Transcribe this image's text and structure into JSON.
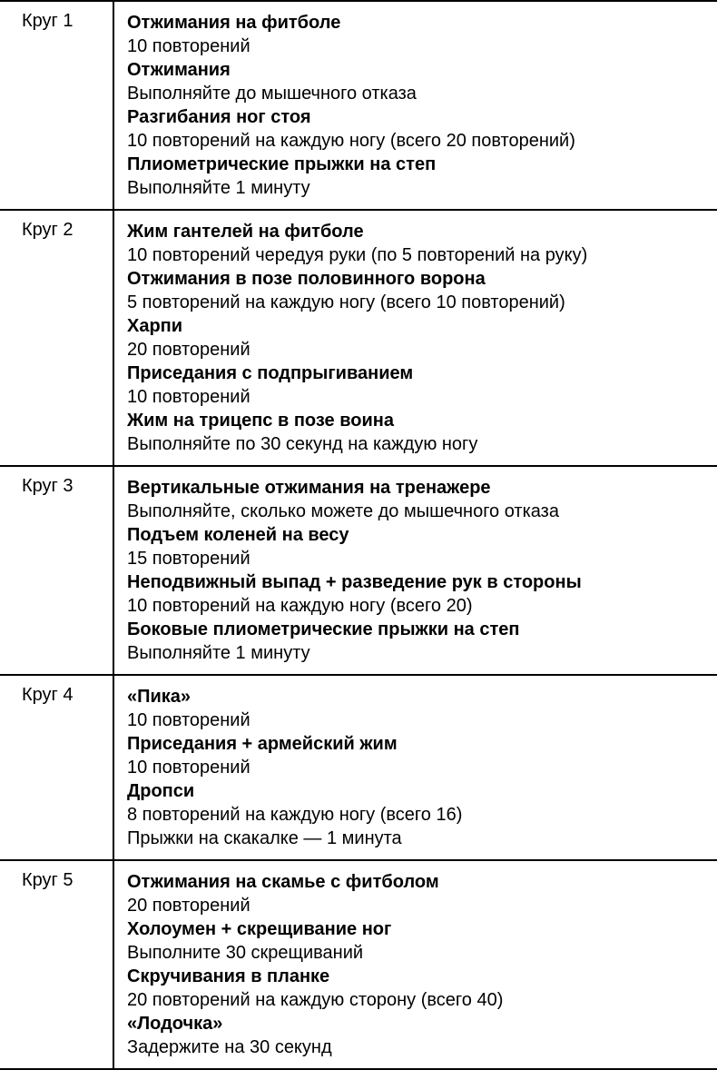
{
  "rounds": [
    {
      "label": "Круг 1",
      "exercises": [
        {
          "name": "Отжимания на фитболе",
          "desc": "10 повторений"
        },
        {
          "name": "Отжимания",
          "desc": "Выполняйте до мышечного отказа"
        },
        {
          "name": "Разгибания ног стоя",
          "desc": "10 повторений на каждую ногу (всего 20 повторений)"
        },
        {
          "name": "Плиометрические прыжки на степ",
          "desc": "Выполняйте 1 минуту"
        }
      ]
    },
    {
      "label": "Круг 2",
      "exercises": [
        {
          "name": "Жим гантелей на фитболе",
          "desc": "10 повторений чередуя руки (по 5 повторений на руку)"
        },
        {
          "name": "Отжимания в позе половинного ворона",
          "desc": "5 повторений на каждую ногу (всего 10 повторений)"
        },
        {
          "name": "Харпи",
          "desc": "20 повторений"
        },
        {
          "name": "Приседания с подпрыгиванием",
          "desc": "10 повторений"
        },
        {
          "name": "Жим на трицепс в позе воина",
          "desc": "Выполняйте по 30 секунд на каждую ногу"
        }
      ]
    },
    {
      "label": "Круг 3",
      "exercises": [
        {
          "name": "Вертикальные отжимания на тренажере",
          "desc": "Выполняйте, сколько можете до мышечного отказа"
        },
        {
          "name": "Подъем коленей на весу",
          "desc": "15 повторений"
        },
        {
          "name": "Неподвижный выпад + разведение рук в стороны",
          "desc": "10 повторений на каждую ногу (всего 20)"
        },
        {
          "name": "Боковые плиометрические прыжки на степ",
          "desc": "Выполняйте 1 минуту"
        }
      ]
    },
    {
      "label": "Круг 4",
      "exercises": [
        {
          "name": "«Пика»",
          "desc": "10 повторений"
        },
        {
          "name": "Приседания + армейский жим",
          "desc": "10 повторений"
        },
        {
          "name": "Дропси",
          "desc": "8 повторений на каждую ногу (всего 16)"
        }
      ],
      "extra_lines": [
        "Прыжки на скакалке — 1 минута"
      ]
    },
    {
      "label": "Круг 5",
      "exercises": [
        {
          "name": "Отжимания на скамье с фитболом",
          "desc": "20 повторений"
        },
        {
          "name": "Холоумен + скрещивание ног",
          "desc": "Выполните 30 скрещиваний"
        },
        {
          "name": "Скручивания в планке",
          "desc": "20 повторений на каждую сторону (всего 40)"
        },
        {
          "name": "«Лодочка»",
          "desc": "Задержите на 30 секунд"
        }
      ]
    }
  ]
}
